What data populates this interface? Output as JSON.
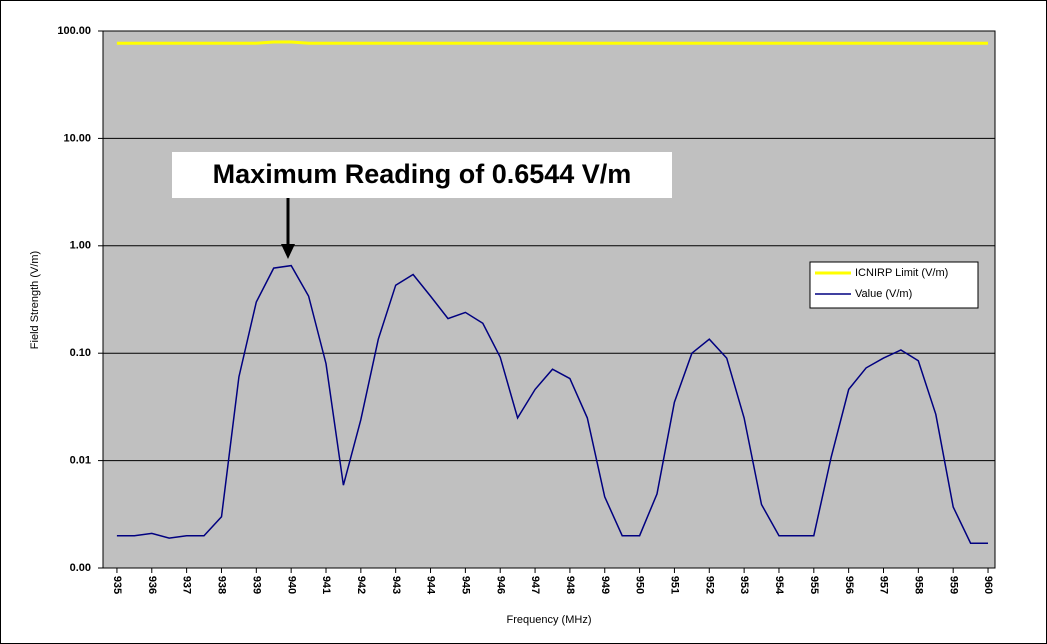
{
  "chart_data": {
    "type": "line",
    "annotation": "Maximum Reading of 0.6544 V/m",
    "x_label": "Frequency (MHz)",
    "y_label": "Field Strength (V/m)",
    "log_y": true,
    "grid": true,
    "legend": "right",
    "x": [
      935,
      935.5,
      936,
      936.5,
      937,
      937.5,
      938,
      938.5,
      939,
      939.5,
      940,
      940.5,
      941,
      941.5,
      942,
      942.5,
      943,
      943.5,
      944,
      944.5,
      945,
      945.5,
      946,
      946.5,
      947,
      947.5,
      948,
      948.5,
      949,
      949.5,
      950,
      950.5,
      951,
      951.5,
      952,
      952.5,
      953,
      953.5,
      954,
      954.5,
      955,
      955.5,
      956,
      956.5,
      957,
      957.5,
      958,
      958.5,
      959,
      959.5,
      960
    ],
    "xlim": [
      934.6,
      960.2
    ],
    "xticks": [
      935,
      936,
      937,
      938,
      939,
      940,
      941,
      942,
      943,
      944,
      945,
      946,
      947,
      948,
      949,
      950,
      951,
      952,
      953,
      954,
      955,
      956,
      957,
      958,
      959,
      960
    ],
    "ylim": [
      0.001,
      100
    ],
    "yticks": [
      {
        "value": 0.001,
        "label": "0.00"
      },
      {
        "value": 0.01,
        "label": "0.01"
      },
      {
        "value": 0.1,
        "label": "0.10"
      },
      {
        "value": 1,
        "label": "1.00"
      },
      {
        "value": 10,
        "label": "10.00"
      },
      {
        "value": 100,
        "label": "100.00"
      }
    ],
    "series": [
      {
        "name": "ICNIRP Limit (V/m)",
        "color": "#ffff00",
        "values": [
          77,
          77,
          77,
          77,
          77,
          77,
          77,
          77,
          77,
          79,
          79,
          77,
          77,
          77,
          77,
          77,
          77,
          77,
          77,
          77,
          77,
          77,
          77,
          77,
          77,
          77,
          77,
          77,
          77,
          77,
          77,
          77,
          77,
          77,
          77,
          77,
          77,
          77,
          77,
          77,
          77,
          77,
          77,
          77,
          77,
          77,
          77,
          77,
          77,
          77,
          77
        ]
      },
      {
        "name": "Value (V/m)",
        "color": "#000080",
        "values": [
          0.002,
          0.002,
          0.0021,
          0.0019,
          0.002,
          0.002,
          0.003,
          0.06,
          0.3,
          0.62,
          0.6544,
          0.34,
          0.08,
          0.0059,
          0.024,
          0.135,
          0.43,
          0.54,
          0.34,
          0.21,
          0.24,
          0.19,
          0.092,
          0.025,
          0.046,
          0.071,
          0.058,
          0.025,
          0.0046,
          0.002,
          0.002,
          0.0049,
          0.035,
          0.1,
          0.135,
          0.09,
          0.025,
          0.0039,
          0.002,
          0.002,
          0.002,
          0.0108,
          0.046,
          0.073,
          0.09,
          0.107,
          0.085,
          0.027,
          0.0037,
          0.0017,
          0.0017
        ]
      }
    ]
  }
}
